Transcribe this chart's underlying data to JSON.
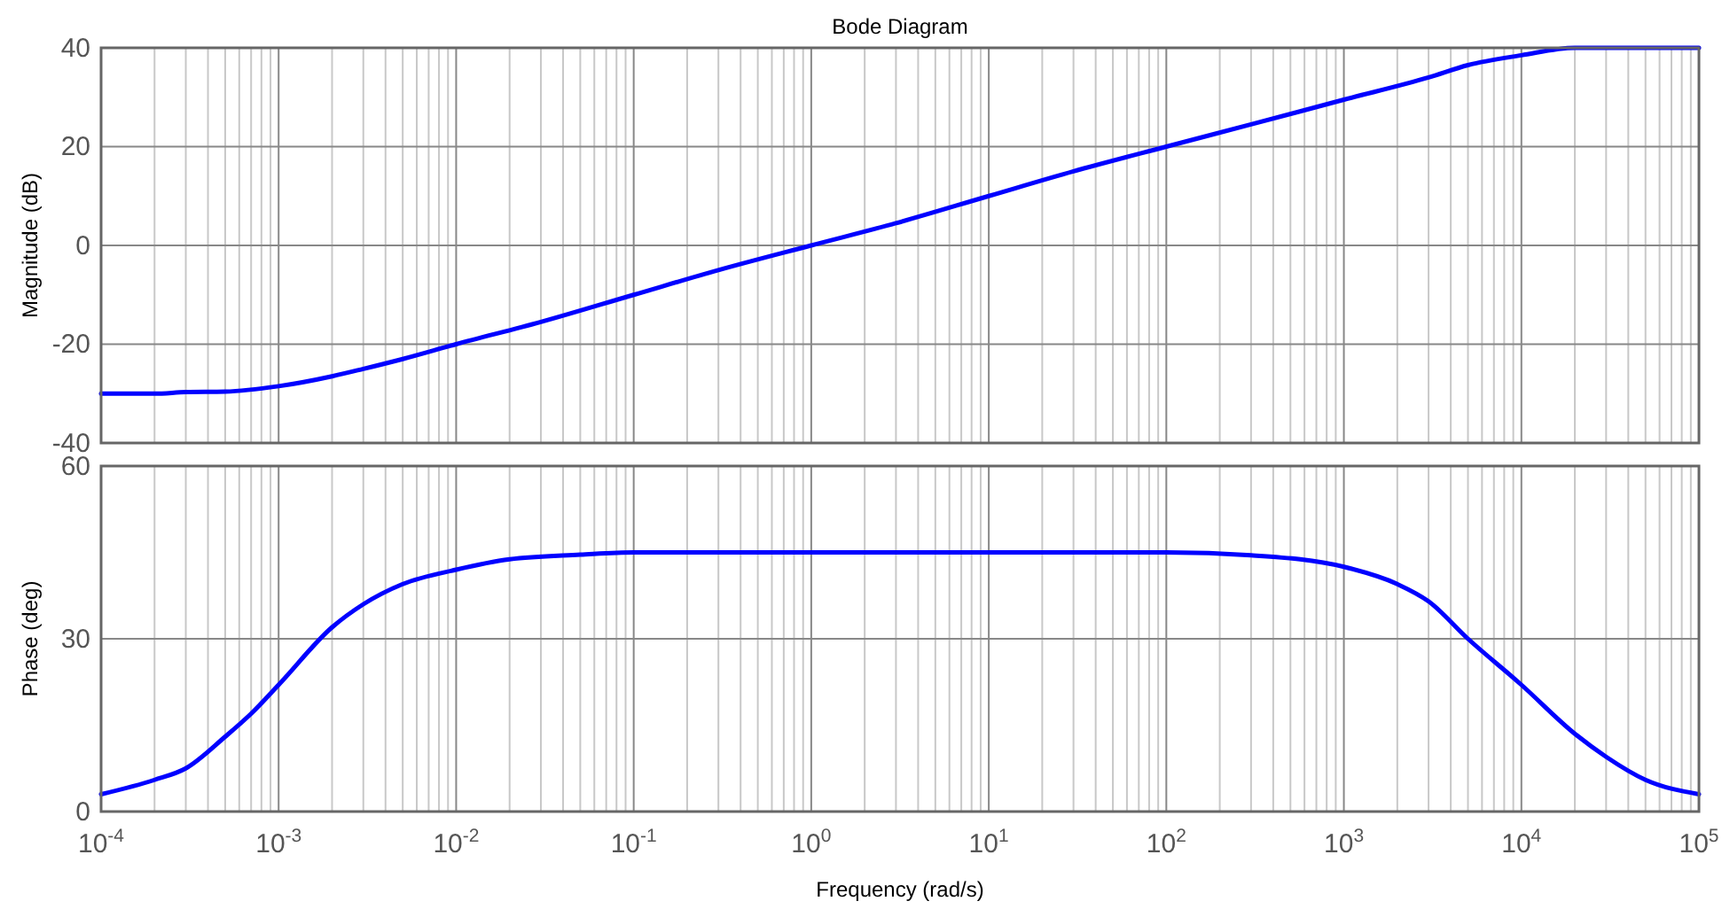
{
  "chart_data": [
    {
      "type": "line",
      "title": "Bode Diagram",
      "ylabel": "Magnitude (dB)",
      "log": "x",
      "grid": true,
      "tick_labels": "y",
      "xlim": [
        0.0001,
        100000
      ],
      "xticks": [
        {
          "value": 0.0001,
          "label": null
        },
        {
          "value": 0.001,
          "label": null
        },
        {
          "value": 0.01,
          "label": null
        },
        {
          "value": 0.1,
          "label": null
        },
        {
          "value": 1,
          "label": null
        },
        {
          "value": 10,
          "label": null
        },
        {
          "value": 100,
          "label": null
        },
        {
          "value": 1000,
          "label": null
        },
        {
          "value": 10000,
          "label": null
        },
        {
          "value": 100000,
          "label": null
        }
      ],
      "ylim": [
        -40,
        40
      ],
      "yticks": [
        -40,
        -20,
        0,
        20,
        40
      ],
      "series": [
        {
          "color": "#0000ff",
          "x": [
            0.0001,
            0.0002,
            0.0003,
            0.0005,
            0.001,
            0.002,
            0.003,
            0.005,
            0.01,
            0.03,
            0.1,
            0.3,
            1,
            3,
            10,
            30,
            100,
            300,
            1000,
            3000,
            5000,
            10000,
            20000,
            100000
          ],
          "values": [
            -30,
            -30,
            -29.7,
            -29.6,
            -28.5,
            -26.5,
            -25,
            -23,
            -20,
            -15.5,
            -10,
            -5,
            0,
            4.5,
            10,
            15,
            20,
            24.5,
            29.5,
            34,
            36.5,
            38.5,
            40,
            40
          ]
        }
      ]
    },
    {
      "type": "line",
      "xlabel": "Frequency  (rad/s)",
      "ylabel": "Phase (deg)",
      "log": "x",
      "grid": true,
      "xlim": [
        0.0001,
        100000
      ],
      "xticks": [
        {
          "value": 0.0001,
          "label": "10$^{-4}$"
        },
        {
          "value": 0.001,
          "label": "10$^{-3}$"
        },
        {
          "value": 0.01,
          "label": "10$^{-2}$"
        },
        {
          "value": 0.1,
          "label": "10$^{-1}$"
        },
        {
          "value": 1,
          "label": "10$^{0}$"
        },
        {
          "value": 10,
          "label": "10$^{1}$"
        },
        {
          "value": 100,
          "label": "10$^{2}$"
        },
        {
          "value": 1000,
          "label": "10$^{3}$"
        },
        {
          "value": 10000,
          "label": "10$^{4}$"
        },
        {
          "value": 100000,
          "label": "10$^{5}$"
        }
      ],
      "ylim": [
        0,
        60
      ],
      "yticks": [
        0,
        30,
        60
      ],
      "series": [
        {
          "color": "#0000ff",
          "x": [
            0.0001,
            0.0002,
            0.0003,
            0.0005,
            0.0007,
            0.001,
            0.002,
            0.003,
            0.005,
            0.01,
            0.02,
            0.05,
            0.1,
            1,
            10,
            100,
            300,
            1000,
            2000,
            3000,
            5000,
            10000,
            20000,
            30000,
            50000,
            100000
          ],
          "values": [
            3,
            5.5,
            7.5,
            13,
            17,
            22,
            32,
            36,
            39.5,
            42,
            43.8,
            44.6,
            45,
            45,
            45,
            45,
            44.5,
            42.5,
            39.5,
            36.5,
            30,
            22,
            13.5,
            9.5,
            5.5,
            3
          ]
        }
      ]
    }
  ]
}
